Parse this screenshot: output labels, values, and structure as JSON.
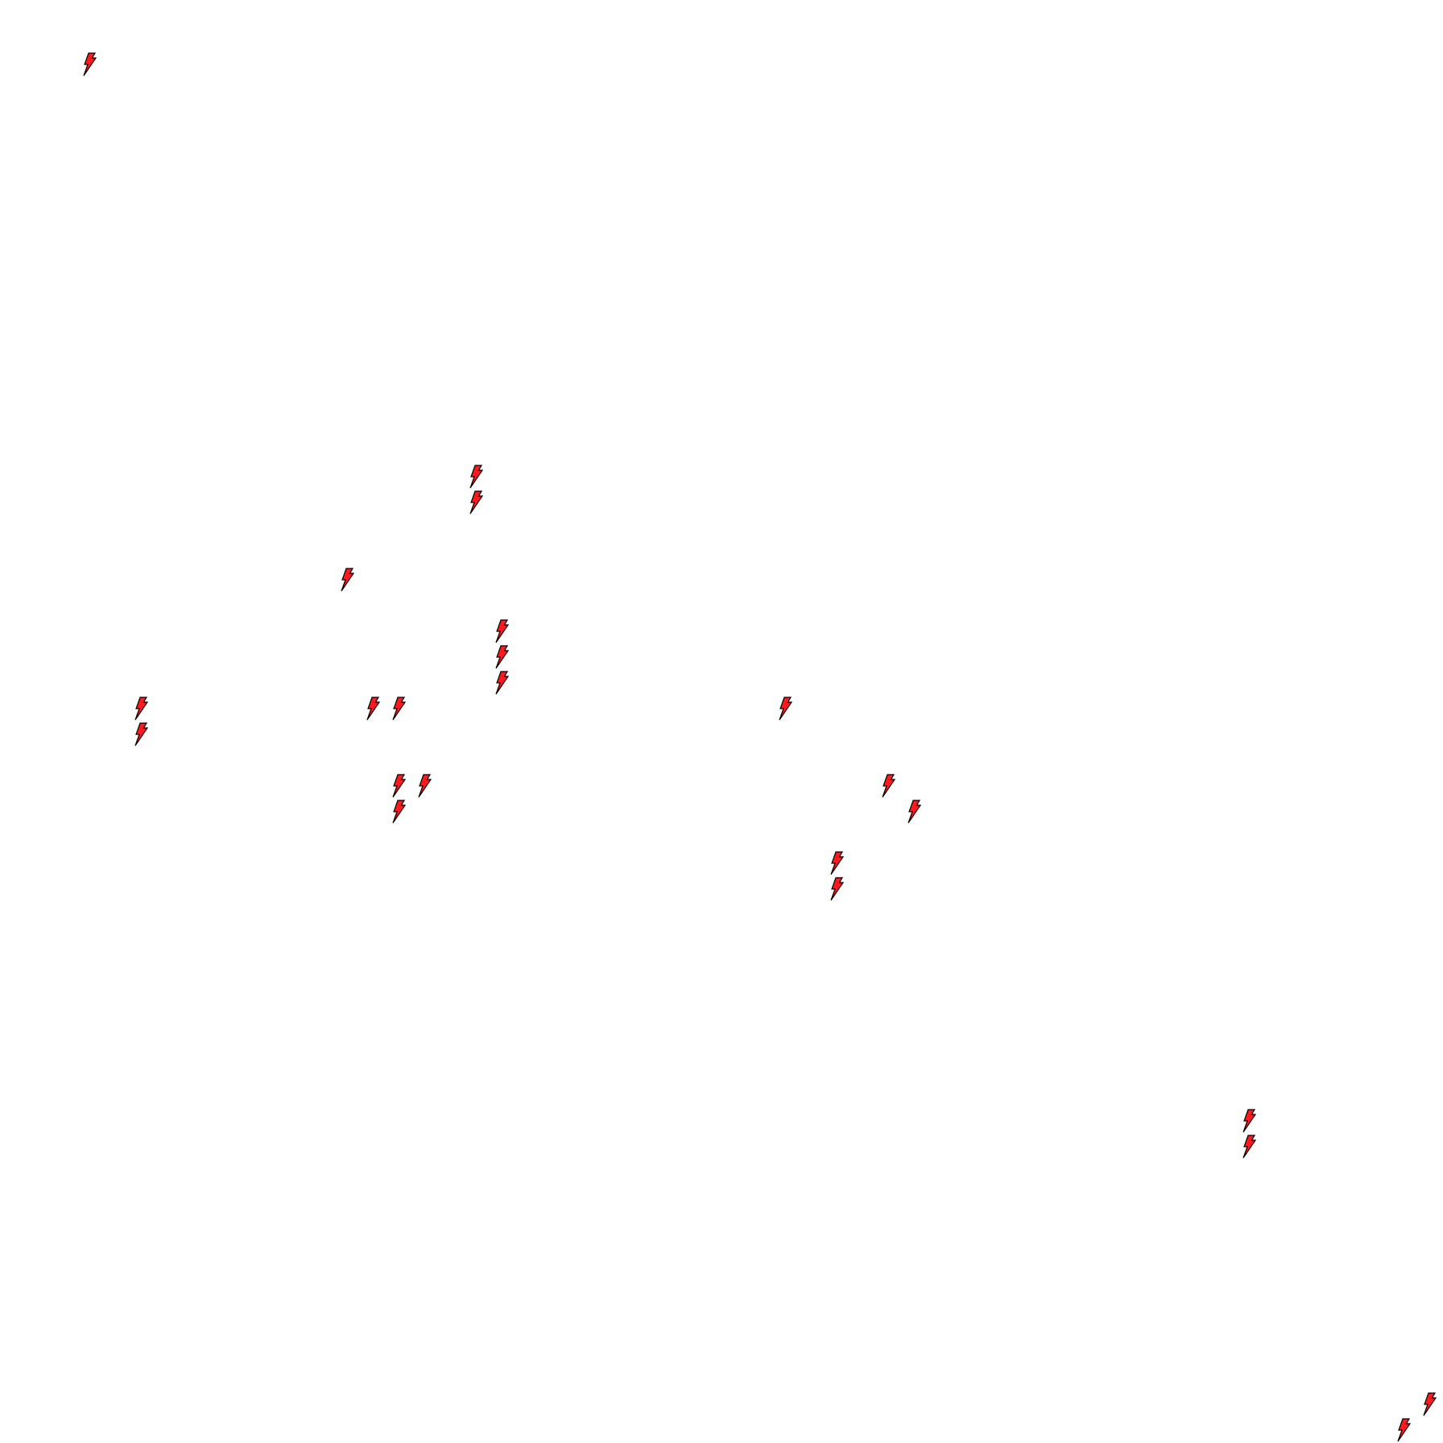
{
  "canvas": {
    "background": "#ffffff"
  },
  "icon": {
    "name": "lightning-bolt-icon",
    "fill": "#ff1a1a",
    "stroke": "#000000"
  }
}
